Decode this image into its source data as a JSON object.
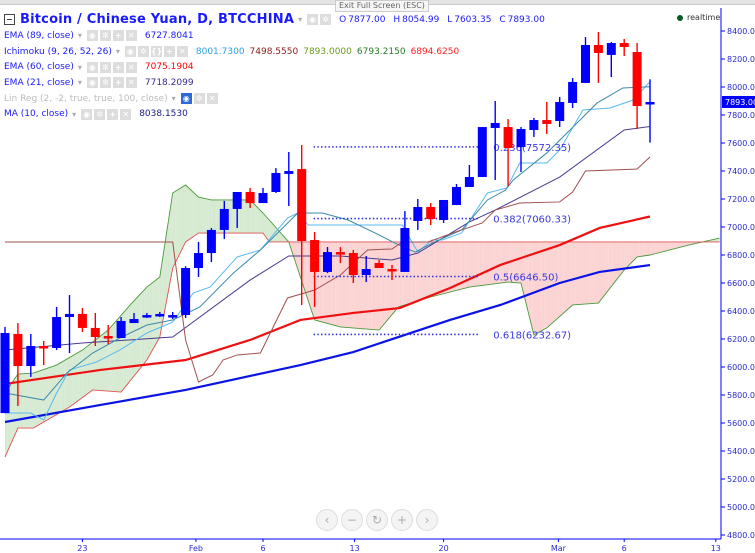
{
  "tooltip": "Exit Full Screen (ESC)",
  "header": {
    "title": "Bitcoin / Chinese Yuan, D, BTCCHINA",
    "ohlc": {
      "o_label": "O",
      "o": "7877.00",
      "h_label": "H",
      "h": "8054.99",
      "l_label": "L",
      "l": "7603.35",
      "c_label": "C",
      "c": "7893.00"
    }
  },
  "indicators": [
    {
      "label": "EMA (89, close)",
      "values": [
        "6727.8041"
      ],
      "colors": [
        "#1a1aff"
      ]
    },
    {
      "label": "Ichimoku (9, 26, 52, 26)",
      "values": [
        "8001.7300",
        "7498.5550",
        "7893.0000",
        "6793.2150",
        "6894.6250"
      ],
      "colors": [
        "#2b9fe0",
        "#8b1a1a",
        "#6a9a1a",
        "#2a7a2a",
        "#ff2020"
      ]
    },
    {
      "label": "EMA (60, close)",
      "values": [
        "7075.1904"
      ],
      "colors": [
        "#ff0000"
      ]
    },
    {
      "label": "EMA (21, close)",
      "values": [
        "7718.2099"
      ],
      "colors": [
        "#3a2a8a"
      ]
    },
    {
      "label": "Lin Reg (2, -2, true, true, 100, close)",
      "values": [],
      "colors": []
    },
    {
      "label": "MA (10, close)",
      "values": [
        "8038.1530"
      ],
      "colors": [
        "#1a1a8a"
      ]
    }
  ],
  "realtime": "realtime",
  "nav_icons": [
    "chevron-left-icon",
    "zoom-out-icon",
    "reset-icon",
    "zoom-in-icon",
    "chevron-right-icon"
  ],
  "nav_glyphs": [
    "‹",
    "−",
    "↻",
    "+",
    "›"
  ],
  "colors": {
    "up": "#0000ff",
    "down": "#ff0000",
    "axis": "#0000ff"
  },
  "chart_data": {
    "type": "candlestick",
    "symbol": "BTCCNY",
    "ylim": [
      4800,
      8500
    ],
    "yticks": [
      4800,
      5000,
      5200,
      5400,
      5600,
      5800,
      6000,
      6200,
      6400,
      6600,
      6800,
      7000,
      7200,
      7400,
      7600,
      7800,
      8000,
      8200,
      8400
    ],
    "ytick_labels": [
      "4800.00",
      "5000.00",
      "5200.00",
      "5400.00",
      "5600.00",
      "5800.00",
      "6000.00",
      "6200.00",
      "6400.00",
      "6600.00",
      "6800.00",
      "7000.00",
      "7200.00",
      "7400.00",
      "7600.00",
      "7800.00",
      "8000.00",
      "8200.00",
      "8400.00"
    ],
    "last_price": 7893,
    "last_price_label": "7893.00",
    "xticks": [
      {
        "i": 6,
        "label": "23"
      },
      {
        "i": 14.8,
        "label": "Feb"
      },
      {
        "i": 20,
        "label": "6"
      },
      {
        "i": 27.1,
        "label": "13"
      },
      {
        "i": 34,
        "label": "20"
      },
      {
        "i": 42.9,
        "label": "Mar"
      },
      {
        "i": 48,
        "label": "6"
      },
      {
        "i": 55.1,
        "label": "13"
      }
    ],
    "candles_ohlc": [
      [
        5671,
        6286,
        5671,
        6243
      ],
      [
        6236,
        6314,
        5721,
        6007
      ],
      [
        6007,
        6236,
        5929,
        6150
      ],
      [
        6150,
        6186,
        6014,
        6136
      ],
      [
        6136,
        6429,
        6121,
        6357
      ],
      [
        6357,
        6514,
        6100,
        6379
      ],
      [
        6379,
        6421,
        6250,
        6279
      ],
      [
        6279,
        6386,
        6150,
        6214
      ],
      [
        6221,
        6300,
        6164,
        6207
      ],
      [
        6207,
        6357,
        6207,
        6329
      ],
      [
        6314,
        6386,
        6314,
        6343
      ],
      [
        6364,
        6386,
        6350,
        6371
      ],
      [
        6371,
        6393,
        6357,
        6379
      ],
      [
        6364,
        6393,
        6343,
        6371
      ],
      [
        6371,
        6720,
        6350,
        6707
      ],
      [
        6707,
        6893,
        6643,
        6814
      ],
      [
        6814,
        6993,
        6750,
        6979
      ],
      [
        6979,
        7186,
        6914,
        7129
      ],
      [
        7129,
        7250,
        6993,
        7250
      ],
      [
        7250,
        7279,
        7136,
        7171
      ],
      [
        7171,
        7279,
        7171,
        7243
      ],
      [
        7250,
        7421,
        7243,
        7386
      ],
      [
        7379,
        7536,
        7150,
        7400
      ],
      [
        7414,
        7586,
        6443,
        6900
      ],
      [
        6907,
        6964,
        6429,
        6679
      ],
      [
        6679,
        6857,
        6671,
        6821
      ],
      [
        6821,
        6857,
        6743,
        6814
      ],
      [
        6814,
        6836,
        6600,
        6657
      ],
      [
        6657,
        6793,
        6607,
        6700
      ],
      [
        6743,
        6764,
        6707,
        6707
      ],
      [
        6700,
        6729,
        6621,
        6686
      ],
      [
        6679,
        7114,
        6679,
        6993
      ],
      [
        7043,
        7200,
        6979,
        7143
      ],
      [
        7143,
        7171,
        7014,
        7057
      ],
      [
        7050,
        7193,
        7029,
        7193
      ],
      [
        7157,
        7307,
        7157,
        7286
      ],
      [
        7286,
        7443,
        7286,
        7357
      ],
      [
        7357,
        7714,
        7357,
        7714
      ],
      [
        7707,
        7900,
        7336,
        7743
      ],
      [
        7714,
        7771,
        7293,
        7564
      ],
      [
        7571,
        7714,
        7393,
        7700
      ],
      [
        7693,
        7779,
        7643,
        7764
      ],
      [
        7764,
        7893,
        7664,
        7736
      ],
      [
        7757,
        7929,
        7714,
        7893
      ],
      [
        7886,
        8064,
        7850,
        8036
      ],
      [
        8029,
        8357,
        8029,
        8300
      ],
      [
        8300,
        8393,
        8029,
        8243
      ],
      [
        8229,
        8321,
        8071,
        8314
      ],
      [
        8314,
        8343,
        8221,
        8286
      ],
      [
        8250,
        8314,
        7700,
        7864
      ],
      [
        7877,
        8055,
        7603,
        7893
      ]
    ],
    "series": [
      {
        "name": "EMA 89",
        "color": "#0a14e6",
        "width": 2.2,
        "points": [
          [
            0,
            5607
          ],
          [
            7.4,
            5729
          ],
          [
            14,
            5836
          ],
          [
            22.9,
            6014
          ],
          [
            27,
            6107
          ],
          [
            34.5,
            6336
          ],
          [
            38.4,
            6443
          ],
          [
            43,
            6600
          ],
          [
            46.1,
            6679
          ],
          [
            50,
            6728
          ]
        ]
      },
      {
        "name": "EMA 60",
        "color": "#ee1111",
        "width": 2.2,
        "points": [
          [
            0,
            5879
          ],
          [
            7.4,
            5979
          ],
          [
            14,
            6050
          ],
          [
            19,
            6193
          ],
          [
            22.9,
            6336
          ],
          [
            27,
            6386
          ],
          [
            30.6,
            6421
          ],
          [
            34.5,
            6564
          ],
          [
            38.4,
            6729
          ],
          [
            43,
            6871
          ],
          [
            46.1,
            6993
          ],
          [
            50,
            7075
          ]
        ]
      },
      {
        "name": "EMA 21",
        "color": "#4a3a90",
        "width": 1,
        "points": [
          [
            0,
            6121
          ],
          [
            6,
            6171
          ],
          [
            13,
            6214
          ],
          [
            19,
            6621
          ],
          [
            22,
            6793
          ],
          [
            26,
            6793
          ],
          [
            30,
            6764
          ],
          [
            32,
            6814
          ],
          [
            36,
            7036
          ],
          [
            38,
            7121
          ],
          [
            43,
            7357
          ],
          [
            48,
            7693
          ],
          [
            50,
            7718
          ]
        ]
      },
      {
        "name": "MA 10",
        "color": "#5ab8f0",
        "width": 1,
        "points": [
          [
            0,
            5671
          ],
          [
            2,
            5671
          ],
          [
            3,
            5621
          ],
          [
            4,
            5814
          ],
          [
            5,
            5979
          ],
          [
            7.1,
            6036
          ],
          [
            8.9,
            6121
          ],
          [
            11,
            6243
          ],
          [
            13,
            6321
          ],
          [
            14.6,
            6529
          ],
          [
            15.9,
            6571
          ],
          [
            18,
            6786
          ],
          [
            19.8,
            6836
          ],
          [
            21.9,
            7064
          ],
          [
            22.7,
            7100
          ],
          [
            23.5,
            7014
          ],
          [
            30.8,
            7014
          ],
          [
            32,
            6821
          ],
          [
            33.1,
            6907
          ],
          [
            33.9,
            6907
          ],
          [
            35.4,
            6957
          ],
          [
            37.4,
            7243
          ],
          [
            38.9,
            7279
          ],
          [
            39.9,
            7457
          ],
          [
            42,
            7457
          ],
          [
            43,
            7550
          ],
          [
            44.8,
            7836
          ],
          [
            46.9,
            7850
          ],
          [
            48.7,
            7907
          ],
          [
            50,
            8038
          ]
        ]
      },
      {
        "name": "Ichimoku Conversion",
        "color": "#3a8aa8",
        "width": 1,
        "points": [
          [
            0,
            5814
          ],
          [
            3,
            5764
          ],
          [
            4.8,
            5957
          ],
          [
            6.8,
            6100
          ],
          [
            8.9,
            6207
          ],
          [
            11,
            6300
          ],
          [
            13,
            6336
          ],
          [
            15.1,
            6429
          ],
          [
            17.7,
            6671
          ],
          [
            19.8,
            6836
          ],
          [
            22.7,
            7100
          ],
          [
            24.6,
            7100
          ],
          [
            26.6,
            7050
          ],
          [
            28.7,
            6957
          ],
          [
            30.2,
            6886
          ],
          [
            31.8,
            6821
          ],
          [
            33.3,
            6893
          ],
          [
            35.4,
            6979
          ],
          [
            37.4,
            7193
          ],
          [
            38.8,
            7264
          ],
          [
            39.4,
            7336
          ],
          [
            42,
            7529
          ],
          [
            43.8,
            7693
          ],
          [
            45.9,
            7886
          ],
          [
            47.9,
            7993
          ],
          [
            50,
            8002
          ]
        ]
      },
      {
        "name": "Ichimoku Base",
        "color": "#a05050",
        "width": 1,
        "points": [
          [
            0,
            6893
          ],
          [
            13,
            6893
          ],
          [
            14,
            6193
          ],
          [
            15,
            5893
          ],
          [
            16.1,
            5943
          ],
          [
            16.9,
            6050
          ],
          [
            18,
            6086
          ],
          [
            19.8,
            6100
          ],
          [
            21.9,
            6493
          ],
          [
            24,
            6550
          ],
          [
            26,
            6657
          ],
          [
            28.1,
            6836
          ],
          [
            30,
            6843
          ],
          [
            30.8,
            6893
          ],
          [
            32.8,
            6893
          ],
          [
            34.9,
            6964
          ],
          [
            37,
            7029
          ],
          [
            38,
            7121
          ],
          [
            39.9,
            7171
          ],
          [
            43,
            7179
          ],
          [
            44,
            7250
          ],
          [
            45,
            7400
          ],
          [
            49,
            7414
          ],
          [
            50,
            7500
          ]
        ]
      }
    ],
    "cloud": {
      "span_a": {
        "color": "#4a9a3a",
        "points": [
          [
            0,
            5814
          ],
          [
            1,
            5950
          ],
          [
            2.2,
            5957
          ],
          [
            4,
            6014
          ],
          [
            6,
            6121
          ],
          [
            8,
            6264
          ],
          [
            9.7,
            6443
          ],
          [
            11,
            6571
          ],
          [
            12,
            6643
          ],
          [
            13,
            7243
          ],
          [
            14,
            7300
          ],
          [
            15,
            7214
          ],
          [
            16,
            7193
          ],
          [
            19,
            7193
          ],
          [
            20,
            7100
          ],
          [
            22,
            6893
          ],
          [
            24,
            6336
          ],
          [
            26,
            6286
          ],
          [
            29,
            6264
          ],
          [
            30.5,
            6429
          ],
          [
            33,
            6500
          ],
          [
            36,
            6571
          ],
          [
            39,
            6607
          ],
          [
            40,
            6600
          ],
          [
            41,
            6229
          ],
          [
            42,
            6279
          ],
          [
            44,
            6443
          ],
          [
            46,
            6457
          ],
          [
            48,
            6693
          ],
          [
            49,
            6786
          ],
          [
            50,
            6800
          ],
          [
            53,
            6871
          ],
          [
            55.4,
            6921
          ]
        ]
      },
      "span_b": {
        "color": "#e05050",
        "points": [
          [
            0,
            5357
          ],
          [
            1,
            5564
          ],
          [
            2.2,
            5564
          ],
          [
            5,
            5714
          ],
          [
            6.8,
            5836
          ],
          [
            9,
            5821
          ],
          [
            11,
            6050
          ],
          [
            12,
            6214
          ],
          [
            13,
            6707
          ],
          [
            14,
            6893
          ],
          [
            15,
            6957
          ],
          [
            20,
            6957
          ],
          [
            20.5,
            6893
          ],
          [
            55.4,
            6893
          ]
        ]
      },
      "bull_fill": "#d6ead2",
      "bear_fill": "#fbd3d3"
    },
    "fibonacci": [
      {
        "ratio": "0.236",
        "value": 7572.35,
        "label": "0.236(7572.35)"
      },
      {
        "ratio": "0.382",
        "value": 7060.33,
        "label": "0.382(7060.33)"
      },
      {
        "ratio": "0.5",
        "value": 6646.5,
        "label": "0.5(6646.50)"
      },
      {
        "ratio": "0.618",
        "value": 6232.67,
        "label": "0.618(6232.67)"
      }
    ],
    "fib_range_index": [
      24,
      37
    ]
  }
}
